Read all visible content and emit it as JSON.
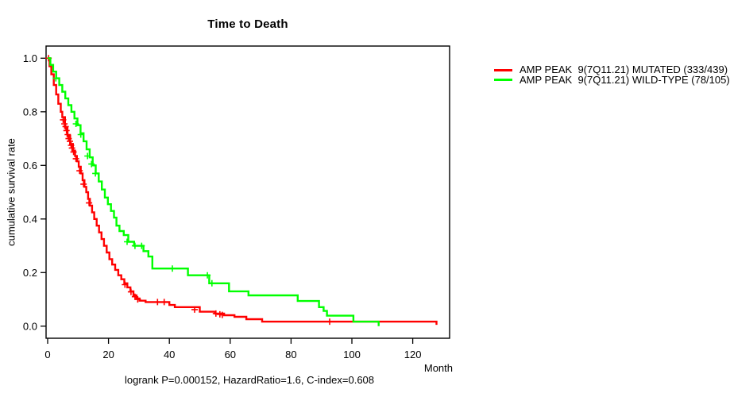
{
  "title": "Time to Death",
  "axes": {
    "y_label": "cumulative survival rate",
    "x_unit_label": "Month",
    "x_ticks": [
      "0",
      "20",
      "40",
      "60",
      "80",
      "100",
      "120"
    ],
    "y_ticks": [
      "1.0",
      "0.8",
      "0.6",
      "0.4",
      "0.2",
      "0.0"
    ]
  },
  "footer": "logrank P=0.000152, HazardRatio=1.6, C-index=0.608",
  "legend": [
    {
      "label": "AMP PEAK  9(7Q11.21) MUTATED (333/439)",
      "color": "#ff0000"
    },
    {
      "label": "AMP PEAK  9(7Q11.21) WILD-TYPE (78/105)",
      "color": "#00ff00"
    }
  ],
  "chart_data": {
    "type": "line",
    "subtype": "kaplan-meier-step",
    "title": "Time to Death",
    "xlabel": "Month",
    "ylabel": "cumulative survival rate",
    "xlim": [
      0,
      132
    ],
    "ylim": [
      0,
      1.0
    ],
    "x_tick_values": [
      0,
      20,
      40,
      60,
      80,
      100,
      120
    ],
    "y_tick_values": [
      1.0,
      0.8,
      0.6,
      0.4,
      0.2,
      0.0
    ],
    "grid": false,
    "legend_position": "right-outside",
    "annotation": "logrank P=0.000152, HazardRatio=1.6, C-index=0.608",
    "series": [
      {
        "name": "AMP PEAK 9(7Q11.21) MUTATED (333/439)",
        "color": "#ff0000",
        "points": [
          [
            0,
            1.0
          ],
          [
            0.6,
            0.97
          ],
          [
            1.2,
            0.94
          ],
          [
            2,
            0.9
          ],
          [
            2.8,
            0.865
          ],
          [
            3.5,
            0.83
          ],
          [
            4.3,
            0.8
          ],
          [
            4.8,
            0.78
          ],
          [
            5.7,
            0.74
          ],
          [
            6.5,
            0.71
          ],
          [
            7.4,
            0.68
          ],
          [
            8.3,
            0.655
          ],
          [
            9,
            0.635
          ],
          [
            9.6,
            0.615
          ],
          [
            10.2,
            0.595
          ],
          [
            10.9,
            0.57
          ],
          [
            11.5,
            0.545
          ],
          [
            12.1,
            0.52
          ],
          [
            12.7,
            0.5
          ],
          [
            13.3,
            0.475
          ],
          [
            13.9,
            0.45
          ],
          [
            14.6,
            0.425
          ],
          [
            15.3,
            0.4
          ],
          [
            16.1,
            0.375
          ],
          [
            16.9,
            0.35
          ],
          [
            17.7,
            0.325
          ],
          [
            18.5,
            0.3
          ],
          [
            19.4,
            0.275
          ],
          [
            20.3,
            0.25
          ],
          [
            21.2,
            0.23
          ],
          [
            22.2,
            0.21
          ],
          [
            23.2,
            0.19
          ],
          [
            24.2,
            0.175
          ],
          [
            25.2,
            0.16
          ],
          [
            26.2,
            0.145
          ],
          [
            27.2,
            0.13
          ],
          [
            28.2,
            0.115
          ],
          [
            29.2,
            0.103
          ],
          [
            30.2,
            0.095
          ],
          [
            32.2,
            0.09
          ],
          [
            40,
            0.079
          ],
          [
            41.8,
            0.071
          ],
          [
            50,
            0.054
          ],
          [
            55,
            0.047
          ],
          [
            58,
            0.041
          ],
          [
            61.4,
            0.035
          ],
          [
            65.3,
            0.026
          ],
          [
            70.5,
            0.017
          ],
          [
            127.8,
            0.005
          ]
        ],
        "censors": [
          [
            0.3,
            1.0
          ],
          [
            5.1,
            0.77
          ],
          [
            5.5,
            0.755
          ],
          [
            5.9,
            0.745
          ],
          [
            6.2,
            0.73
          ],
          [
            6.6,
            0.715
          ],
          [
            6.9,
            0.7
          ],
          [
            7.3,
            0.69
          ],
          [
            7.7,
            0.675
          ],
          [
            8,
            0.665
          ],
          [
            8.5,
            0.65
          ],
          [
            9.3,
            0.625
          ],
          [
            10.5,
            0.58
          ],
          [
            11.8,
            0.53
          ],
          [
            13.6,
            0.46
          ],
          [
            25.4,
            0.155
          ],
          [
            27.4,
            0.128
          ],
          [
            28.7,
            0.11
          ],
          [
            29.6,
            0.1
          ],
          [
            36.1,
            0.09
          ],
          [
            38.3,
            0.09
          ],
          [
            48.3,
            0.062
          ],
          [
            55.3,
            0.047
          ],
          [
            56.6,
            0.044
          ],
          [
            57.4,
            0.042
          ],
          [
            92.7,
            0.017
          ]
        ]
      },
      {
        "name": "AMP PEAK 9(7Q11.21) WILD-TYPE (78/105)",
        "color": "#00ff00",
        "points": [
          [
            0,
            1.0
          ],
          [
            0.9,
            0.975
          ],
          [
            1.8,
            0.95
          ],
          [
            2.8,
            0.925
          ],
          [
            3.8,
            0.9
          ],
          [
            4.8,
            0.875
          ],
          [
            5.8,
            0.85
          ],
          [
            6.8,
            0.825
          ],
          [
            7.8,
            0.8
          ],
          [
            8.8,
            0.775
          ],
          [
            9.8,
            0.75
          ],
          [
            10.8,
            0.72
          ],
          [
            11.8,
            0.69
          ],
          [
            12.8,
            0.66
          ],
          [
            13.8,
            0.63
          ],
          [
            14.8,
            0.6
          ],
          [
            15.8,
            0.57
          ],
          [
            16.8,
            0.54
          ],
          [
            17.8,
            0.51
          ],
          [
            18.8,
            0.48
          ],
          [
            19.8,
            0.455
          ],
          [
            20.8,
            0.43
          ],
          [
            21.8,
            0.405
          ],
          [
            22.6,
            0.375
          ],
          [
            23.6,
            0.355
          ],
          [
            25,
            0.34
          ],
          [
            26.5,
            0.315
          ],
          [
            28.4,
            0.3
          ],
          [
            31.5,
            0.28
          ],
          [
            33.1,
            0.26
          ],
          [
            34.4,
            0.215
          ],
          [
            46.1,
            0.19
          ],
          [
            53.1,
            0.16
          ],
          [
            59.6,
            0.13
          ],
          [
            66,
            0.115
          ],
          [
            82.2,
            0.094
          ],
          [
            89.2,
            0.071
          ],
          [
            90.7,
            0.057
          ],
          [
            91.8,
            0.039
          ],
          [
            100.5,
            0.017
          ],
          [
            108.8,
            0.0
          ]
        ],
        "censors": [
          [
            2.7,
            0.925
          ],
          [
            9.3,
            0.755
          ],
          [
            10.9,
            0.715
          ],
          [
            13.1,
            0.635
          ],
          [
            14.4,
            0.605
          ],
          [
            15.7,
            0.57
          ],
          [
            26.1,
            0.315
          ],
          [
            28.7,
            0.3
          ],
          [
            30.9,
            0.3
          ],
          [
            41,
            0.215
          ],
          [
            52.5,
            0.19
          ],
          [
            54,
            0.16
          ]
        ]
      }
    ]
  }
}
